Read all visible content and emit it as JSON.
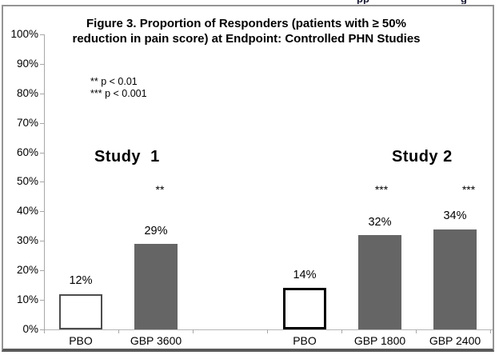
{
  "page": {
    "top_edge_fragments": {
      "left": "pp",
      "right": "g"
    }
  },
  "chart_data": {
    "type": "bar",
    "title": "Figure 3. Proportion of Responders (patients with ≥ 50% reduction in pain score) at Endpoint: Controlled PHN Studies",
    "title_lines": [
      "Figure 3. Proportion of Responders (patients with ≥ 50%",
      "reduction in pain score) at Endpoint: Controlled PHN Studies"
    ],
    "legend_notes": [
      "** p < 0.01",
      "*** p < 0.001"
    ],
    "ylim": [
      0,
      100
    ],
    "y_tick_labels": [
      "100%",
      "90%",
      "80%",
      "70%",
      "60%",
      "50%",
      "40%",
      "30%",
      "20%",
      "10%",
      "0%"
    ],
    "grid": "off",
    "groups": [
      {
        "name": "Study  1",
        "bars": [
          {
            "category": "PBO",
            "value": 12,
            "label": "12%",
            "significance": "",
            "fill": "white"
          },
          {
            "category": "GBP 3600",
            "value": 29,
            "label": "29%",
            "significance": "**",
            "fill": "gray"
          }
        ]
      },
      {
        "name": "Study 2",
        "bars": [
          {
            "category": "PBO",
            "value": 14,
            "label": "14%",
            "significance": "",
            "fill": "white"
          },
          {
            "category": "GBP 1800",
            "value": 32,
            "label": "32%",
            "significance": "***",
            "fill": "gray"
          },
          {
            "category": "GBP 2400",
            "value": 34,
            "label": "34%",
            "significance": "***",
            "fill": "gray"
          }
        ]
      }
    ],
    "colors": {
      "bar_gray": "#656565",
      "bar_white": "#ffffff",
      "axis": "#a8a8a8",
      "frame_border": "#949494",
      "bottom_rule": "#5a5a5a",
      "text": "#000000"
    }
  }
}
